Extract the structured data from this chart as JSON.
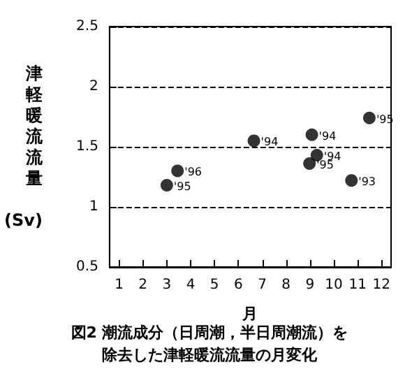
{
  "chart_data": {
    "type": "scatter",
    "title": "図2 潮流成分（日周潮，半日周潮流）を除去した津軽暖流流量の月変化",
    "xlabel": "月",
    "ylabel": "津軽暖流流量 (Sv)",
    "x": [
      3.0,
      3.45,
      6.65,
      9.08,
      9.29,
      8.98,
      10.74,
      11.49
    ],
    "values": [
      1.18,
      1.3,
      1.55,
      1.6,
      1.43,
      1.36,
      1.22,
      1.74
    ],
    "annotations": [
      {
        "text": "'95",
        "x": 3.0,
        "y": 1.18
      },
      {
        "text": "'96",
        "x": 3.45,
        "y": 1.3
      },
      {
        "text": "'94",
        "x": 6.65,
        "y": 1.55
      },
      {
        "text": "'94",
        "x": 9.08,
        "y": 1.6
      },
      {
        "text": "'94",
        "x": 9.29,
        "y": 1.43
      },
      {
        "text": "'95",
        "x": 8.98,
        "y": 1.36
      },
      {
        "text": "'93",
        "x": 10.74,
        "y": 1.22
      },
      {
        "text": "'95",
        "x": 11.49,
        "y": 1.74
      }
    ],
    "color": "#000000",
    "marker": "circle",
    "xlim": [
      0.6,
      12.4
    ],
    "xticks": [
      1,
      2,
      3,
      4,
      5,
      6,
      7,
      8,
      9,
      10,
      11,
      12
    ],
    "ylim": [
      0.5,
      2.5
    ],
    "yticks": [
      {
        "value": 0.5,
        "label": "0.5"
      },
      {
        "value": 1,
        "label": "1"
      },
      {
        "value": 1.5,
        "label": "1.5"
      },
      {
        "value": 2,
        "label": "2"
      },
      {
        "value": 2.5,
        "label": "2.5"
      }
    ],
    "grid": "y"
  }
}
